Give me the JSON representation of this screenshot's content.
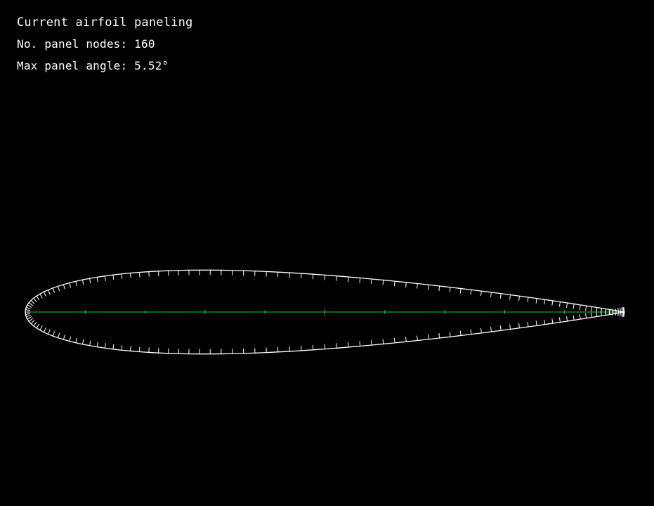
{
  "window": {
    "background_color": "#000000",
    "text_color": "#ffffff"
  },
  "info": {
    "title": "Current airfoil paneling",
    "nodes_label": "No. panel nodes: 160",
    "angle_label": "Max panel angle: 5.52°"
  },
  "airfoil": {
    "panel_nodes": 160,
    "max_panel_angle_deg": 5.52,
    "max_thickness_fraction": 0.14,
    "outline_color": "#ffffff",
    "panel_tick_color": "#ffffff",
    "chord_line_color": "#1fcc1f",
    "chord_ticks": 10
  }
}
